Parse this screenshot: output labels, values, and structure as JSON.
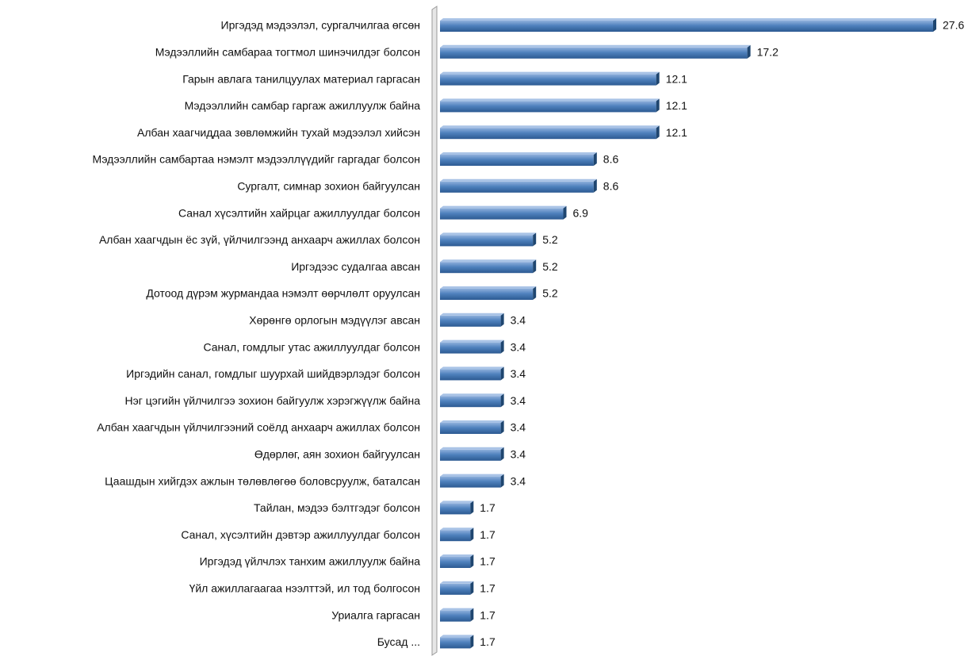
{
  "chart_data": {
    "type": "bar",
    "orientation": "horizontal",
    "color": "#4f81bd",
    "categories": [
      "Иргэдэд мэдээлэл, сургалчилгаа өгсөн",
      "Мэдээллийн самбараа тогтмол шинэчилдэг болсон",
      "Гарын авлага танилцуулах материал гаргасан",
      "Мэдээллийн самбар гаргаж ажиллуулж байна",
      "Албан хаагчиддаа зөвлөмжийн тухай мэдээлэл хийсэн",
      "Мэдээллийн самбартаа нэмэлт мэдээллүүдийг гаргадаг болсон",
      "Сургалт, симнар зохион байгуулсан",
      "Санал хүсэлтийн хайрцаг ажиллуулдаг болсон",
      "Албан хаагчдын ёс зүй, үйлчилгээнд анхаарч ажиллах болсон",
      "Иргэдээс судалгаа авсан",
      "Дотоод дүрэм журмандаа нэмэлт өөрчлөлт оруулсан",
      "Хөрөнгө орлогын мэдүүлэг авсан",
      "Санал, гомдлыг утас ажиллуулдаг болсон",
      "Иргэдийн санал, гомдлыг шуурхай шийдвэрлэдэг болсон",
      "Нэг цэгийн үйлчилгээ зохион байгуулж хэрэгжүүлж байна",
      "Албан хаагчдын үйлчилгээний соёлд анхаарч ажиллах болсон",
      "Өдөрлөг, аян зохион байгуулсан",
      "Цаашдын хийгдэх ажлын төлөвлөгөө боловсруулж, баталсан",
      "Тайлан, мэдээ бэлтгэдэг болсон",
      "Санал, хүсэлтийн дэвтэр ажиллуулдаг болсон",
      "Иргэдэд үйлчлэх танхим ажиллуулж байна",
      "Үйл ажиллагаагаа нээлттэй, ил тод болгосон",
      "Уриалга гаргасан",
      "Бусад ..."
    ],
    "values": [
      27.6,
      17.2,
      12.1,
      12.1,
      12.1,
      8.6,
      8.6,
      6.9,
      5.2,
      5.2,
      5.2,
      3.4,
      3.4,
      3.4,
      3.4,
      3.4,
      3.4,
      3.4,
      1.7,
      1.7,
      1.7,
      1.7,
      1.7,
      1.7
    ]
  }
}
